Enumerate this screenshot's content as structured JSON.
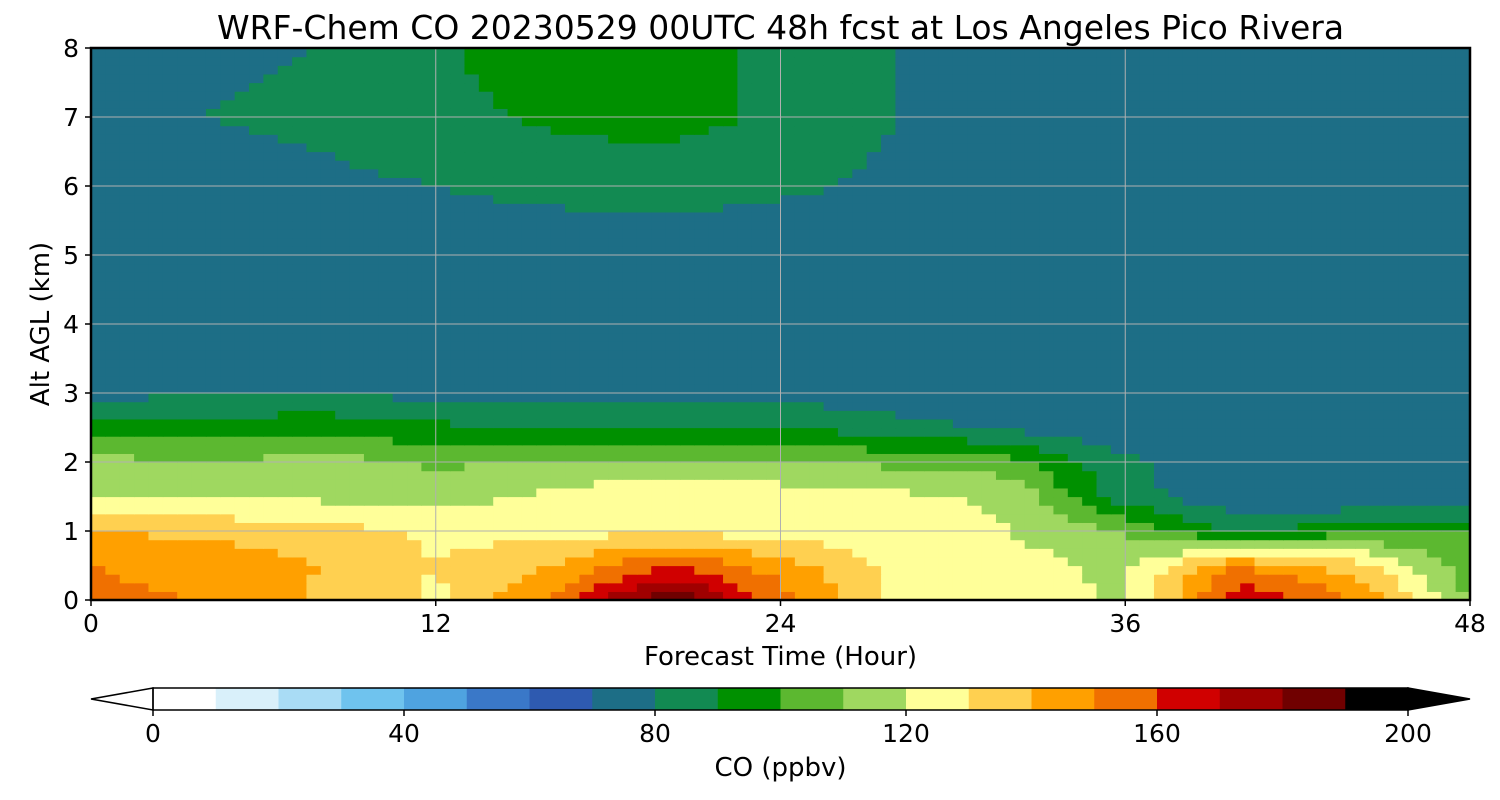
{
  "chart_data": {
    "type": "heatmap",
    "title": "WRF-Chem CO  20230529 00UTC 48h fcst at Los Angeles Pico Rivera",
    "xlabel": "Forecast Time (Hour)",
    "ylabel": "Alt AGL (km)",
    "xlim": [
      0,
      48
    ],
    "ylim": [
      0,
      8
    ],
    "x_ticks": [
      "0",
      "12",
      "24",
      "36",
      "48"
    ],
    "y_ticks": [
      "0",
      "1",
      "2",
      "3",
      "4",
      "5",
      "6",
      "7",
      "8"
    ],
    "grid": true,
    "x": [
      0,
      4,
      8,
      12,
      16,
      20,
      24,
      28,
      32,
      36,
      40,
      44,
      48
    ],
    "y": [
      0,
      0.5,
      1,
      1.5,
      2,
      2.5,
      3,
      4,
      5,
      6,
      7,
      8
    ],
    "z": [
      [
        152,
        150,
        138,
        128,
        152,
        190,
        155,
        128,
        125,
        118,
        170,
        150,
        108
      ],
      [
        150,
        146,
        140,
        130,
        140,
        160,
        145,
        126,
        124,
        118,
        150,
        135,
        106
      ],
      [
        140,
        138,
        134,
        128,
        126,
        128,
        126,
        124,
        120,
        110,
        86,
        98,
        100
      ],
      [
        118,
        118,
        118,
        116,
        122,
        130,
        126,
        122,
        118,
        84,
        72,
        70,
        72
      ],
      [
        114,
        110,
        114,
        108,
        112,
        112,
        110,
        108,
        104,
        82,
        70,
        70,
        70
      ],
      [
        92,
        96,
        98,
        92,
        90,
        90,
        90,
        84,
        78,
        72,
        70,
        70,
        70
      ],
      [
        78,
        78,
        78,
        78,
        78,
        76,
        76,
        74,
        72,
        70,
        70,
        70,
        70
      ],
      [
        74,
        74,
        74,
        74,
        72,
        72,
        70,
        70,
        70,
        70,
        70,
        70,
        70
      ],
      [
        74,
        74,
        74,
        76,
        75,
        74,
        72,
        70,
        70,
        70,
        70,
        70,
        70
      ],
      [
        76,
        76,
        78,
        80,
        82,
        84,
        82,
        78,
        74,
        74,
        74,
        74,
        74
      ],
      [
        78,
        80,
        82,
        86,
        92,
        94,
        88,
        80,
        76,
        76,
        76,
        76,
        76
      ],
      [
        78,
        78,
        80,
        88,
        98,
        96,
        86,
        80,
        76,
        76,
        76,
        76,
        76
      ]
    ],
    "colorbar": {
      "label": "CO  (ppbv)",
      "min": 0,
      "max": 200,
      "ticks": [
        "0",
        "40",
        "80",
        "120",
        "160",
        "200"
      ],
      "extend": "both",
      "colors": [
        "#ffffff",
        "#d9f0fa",
        "#a9dcf5",
        "#6fc3ee",
        "#4fa3e0",
        "#3a78c8",
        "#2e5ab0",
        "#1d6e86",
        "#128a52",
        "#009000",
        "#5cb830",
        "#9fd860",
        "#ffff99",
        "#ffd050",
        "#ffa000",
        "#f07000",
        "#d00000",
        "#a00000",
        "#700000",
        "#000000"
      ]
    }
  }
}
